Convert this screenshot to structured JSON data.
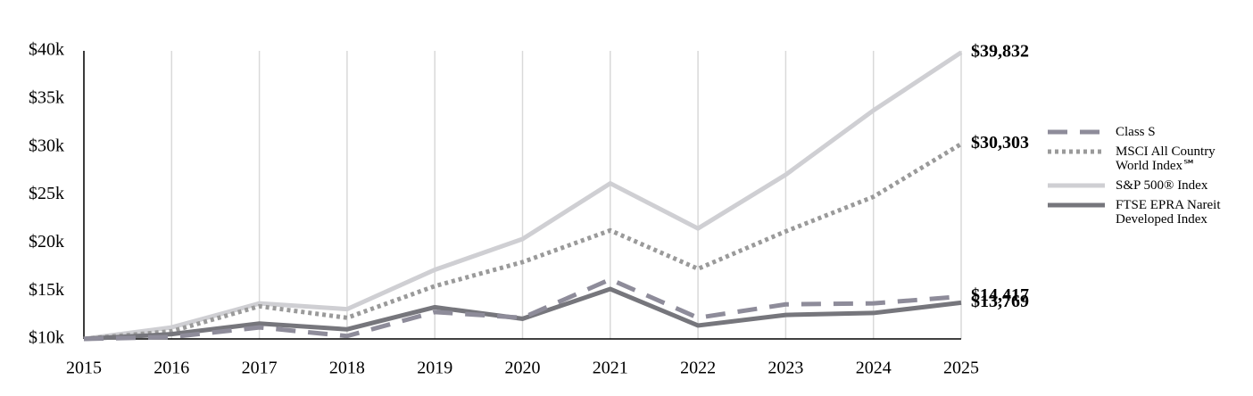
{
  "chart_data": {
    "type": "line",
    "x": [
      2015,
      2016,
      2017,
      2018,
      2019,
      2020,
      2021,
      2022,
      2023,
      2024,
      2025
    ],
    "xlim": [
      2015,
      2025
    ],
    "xticks": [
      2015,
      2016,
      2017,
      2018,
      2019,
      2020,
      2021,
      2022,
      2023,
      2024,
      2025
    ],
    "ylim": [
      10000,
      40000
    ],
    "yticks": [
      {
        "value": 10000,
        "label": "$10k"
      },
      {
        "value": 15000,
        "label": "$15k"
      },
      {
        "value": 20000,
        "label": "$20k"
      },
      {
        "value": 25000,
        "label": "$25k"
      },
      {
        "value": 30000,
        "label": "$30k"
      },
      {
        "value": 35000,
        "label": "$35k"
      },
      {
        "value": 40000,
        "label": "$40k"
      }
    ],
    "grid": "x",
    "legend": "right",
    "series": [
      {
        "name": "Class S",
        "color": "#8e8c9a",
        "style": "dashed",
        "values": [
          10000,
          10200,
          11200,
          10300,
          12800,
          12200,
          16200,
          12200,
          13600,
          13700,
          14417
        ],
        "value_labels": [
          null,
          null,
          null,
          null,
          null,
          null,
          null,
          null,
          null,
          null,
          "$14,417"
        ]
      },
      {
        "name": "MSCI All Country World Index℠",
        "color": "#9a9a9a",
        "style": "dotted",
        "values": [
          10000,
          10800,
          13400,
          12200,
          15500,
          18000,
          21300,
          17300,
          21200,
          24800,
          30303
        ],
        "value_labels": [
          null,
          null,
          null,
          null,
          null,
          null,
          null,
          null,
          null,
          null,
          "$30,303"
        ]
      },
      {
        "name": "S&P 500® Index",
        "color": "#cfcfd3",
        "style": "solid",
        "values": [
          10000,
          11200,
          13700,
          13100,
          17200,
          20400,
          26200,
          21500,
          27100,
          33800,
          39832
        ],
        "value_labels": [
          null,
          null,
          null,
          null,
          null,
          null,
          null,
          null,
          null,
          null,
          "$39,832"
        ]
      },
      {
        "name": "FTSE EPRA Nareit Developed Index",
        "color": "#76767c",
        "style": "solid",
        "values": [
          10000,
          10500,
          11600,
          11000,
          13300,
          12100,
          15200,
          11400,
          12500,
          12700,
          13769
        ],
        "value_labels": [
          null,
          null,
          null,
          null,
          null,
          null,
          null,
          null,
          null,
          null,
          "$13,769"
        ]
      }
    ]
  }
}
